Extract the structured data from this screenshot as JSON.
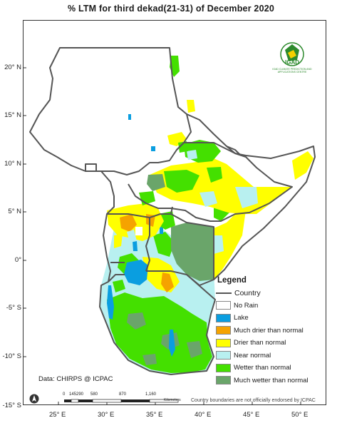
{
  "title": "% LTM  for third  dekad(21-31)  of December 2020",
  "y_ticks": [
    "20° N",
    "15° N",
    "10° N",
    "5° N",
    "0°",
    "-5° S",
    "-10° S",
    "-15° S"
  ],
  "x_ticks": [
    "25° E",
    "30° E",
    "35° E",
    "40° E",
    "45° E",
    "50° E"
  ],
  "legend": {
    "title": "Legend",
    "items": [
      {
        "label": "Country",
        "type": "line",
        "color": "#555555"
      },
      {
        "label": "No Rain",
        "type": "box",
        "color": "#ffffff"
      },
      {
        "label": "Lake",
        "type": "box",
        "color": "#0a9ee0"
      },
      {
        "label": "Much drier than normal",
        "type": "box",
        "color": "#f5a300"
      },
      {
        "label": "Drier than normal",
        "type": "box",
        "color": "#ffff00"
      },
      {
        "label": "Near normal",
        "type": "box",
        "color": "#b8f0f0"
      },
      {
        "label": "Wetter than normal",
        "type": "box",
        "color": "#44e000"
      },
      {
        "label": "Much wetter than normal",
        "type": "box",
        "color": "#6aa56a"
      }
    ]
  },
  "source": "Data: CHIRPS @ ICPAC",
  "disclaimer": "Country boundaries are not officially endorsed by ICPAC",
  "scale": {
    "labels": [
      "0",
      "145",
      "290",
      "580",
      "870",
      "1,160"
    ],
    "unit": "Kilometers"
  },
  "logo": {
    "text": "IGAD",
    "subtitle": "IGAD CLIMATE PREDICTION AND APPLICATIONS CENTRE"
  },
  "colors": {
    "lake": "#0a9ee0",
    "much_drier": "#f5a300",
    "drier": "#ffff00",
    "near_normal": "#b8f0f0",
    "wetter": "#44e000",
    "much_wetter": "#6aa56a",
    "border": "#555555"
  }
}
